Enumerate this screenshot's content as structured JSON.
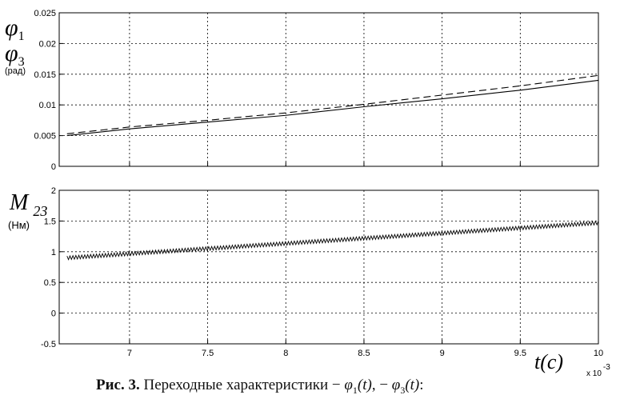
{
  "chart_data": [
    {
      "type": "line",
      "ylabel_symbols": [
        "φ",
        "φ"
      ],
      "ylabel_subscripts": [
        "1",
        "3"
      ],
      "ylabel_unit": "(рад)",
      "ylim": [
        0,
        0.025
      ],
      "yticks": [
        0,
        0.005,
        0.01,
        0.015,
        0.02,
        0.025
      ],
      "ytick_labels": [
        "0",
        "0.005",
        "0.01",
        "0.015",
        "0.02",
        "0.025"
      ],
      "xlim": [
        6.55,
        10
      ],
      "xticks": [
        7,
        7.5,
        8,
        8.5,
        9,
        9.5,
        10
      ],
      "grid": true,
      "series": [
        {
          "style": "solid",
          "x": [
            6.6,
            7.0,
            7.5,
            8.0,
            8.5,
            9.0,
            9.5,
            10.0
          ],
          "y": [
            0.005,
            0.0061,
            0.0072,
            0.0083,
            0.0097,
            0.011,
            0.0124,
            0.014
          ]
        },
        {
          "style": "dashed",
          "x": [
            6.6,
            7.0,
            7.5,
            8.0,
            8.5,
            9.0,
            9.5,
            10.0
          ],
          "y": [
            0.0053,
            0.0064,
            0.0075,
            0.0087,
            0.0101,
            0.0116,
            0.0131,
            0.0148
          ]
        }
      ]
    },
    {
      "type": "line",
      "ylabel_symbol": "M",
      "ylabel_subscript": "23",
      "ylabel_unit": "(Нм)",
      "ylim": [
        -0.5,
        2
      ],
      "yticks": [
        -0.5,
        0,
        0.5,
        1,
        1.5,
        2
      ],
      "ytick_labels": [
        "-0.5",
        "0",
        "0.5",
        "1",
        "1.5",
        "2"
      ],
      "xlim": [
        6.55,
        10
      ],
      "xticks": [
        7,
        7.5,
        8,
        8.5,
        9,
        9.5,
        10
      ],
      "xtick_labels": [
        "7",
        "7.5",
        "8",
        "8.5",
        "9",
        "9.5",
        "10"
      ],
      "x_exponent_label": "x 10",
      "x_exponent_power": "-3",
      "xlabel": "t(c)",
      "grid": true,
      "series": [
        {
          "style": "oscillating",
          "x_start": 6.6,
          "x_end": 10.0,
          "y_start": 0.9,
          "y_end": 1.47,
          "amplitude": 0.03,
          "cycles": 180
        }
      ]
    }
  ],
  "caption": {
    "label": "Рис. 3.",
    "text": " Переходные характеристики − ",
    "sym1": "φ",
    "sub1": "1",
    "arg1": "(t)",
    "sep": ", − ",
    "sym2": "φ",
    "sub2": "3",
    "arg2": "(t)",
    "end": ":"
  }
}
